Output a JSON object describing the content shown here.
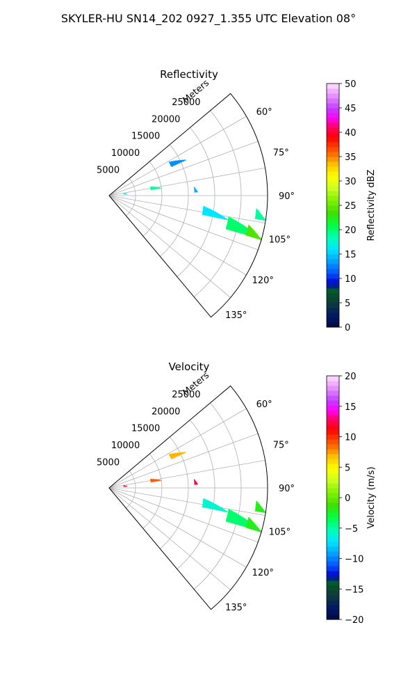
{
  "title": "SKYLER-HU  SN14_202  0927_1.355 UTC Elevation 08°",
  "chart_data": [
    {
      "type": "polar-sector",
      "title": "Reflectivity",
      "range_label": "Meters",
      "range_ticks": [
        5000,
        10000,
        15000,
        20000,
        25000
      ],
      "range_tick_labels": [
        "5000",
        "10000",
        "15000",
        "20000",
        "25000"
      ],
      "range_max_m": 30000,
      "azimuth_range_deg": [
        50,
        140
      ],
      "azimuth_ticks_deg": [
        60,
        75,
        90,
        105,
        120,
        135
      ],
      "azimuth_tick_labels": [
        "60°",
        "75°",
        "90°",
        "105°",
        "120°",
        "135°"
      ],
      "colorbar": {
        "label": "Reflectivity dBZ",
        "range": [
          0,
          50
        ],
        "ticks": [
          0,
          5,
          10,
          15,
          20,
          25,
          30,
          35,
          40,
          45,
          50
        ],
        "tick_labels": [
          "0",
          "5",
          "10",
          "15",
          "20",
          "25",
          "30",
          "35",
          "40",
          "45",
          "50"
        ]
      },
      "echo_regions": [
        {
          "az_deg": 63,
          "range_m": [
            13000,
            16000
          ],
          "value": 13
        },
        {
          "az_deg": 80,
          "range_m": [
            8000,
            10000
          ],
          "value": 19
        },
        {
          "az_deg": 86,
          "range_m": [
            16200,
            16800
          ],
          "value": 14
        },
        {
          "az_deg": 83,
          "range_m": [
            2800,
            3400
          ],
          "value": 18
        },
        {
          "az_deg": 97,
          "range_m": [
            28000,
            32000
          ],
          "value": 19
        },
        {
          "az_deg": 99,
          "range_m": [
            18000,
            23000
          ],
          "value": 16
        },
        {
          "az_deg": 103,
          "range_m": [
            23000,
            31000
          ],
          "value": 20
        },
        {
          "az_deg": 104,
          "range_m": [
            27000,
            31000
          ],
          "value": 24
        }
      ]
    },
    {
      "type": "polar-sector",
      "title": "Velocity",
      "range_label": "Meters",
      "range_ticks": [
        5000,
        10000,
        15000,
        20000,
        25000
      ],
      "range_tick_labels": [
        "5000",
        "10000",
        "15000",
        "20000",
        "25000"
      ],
      "range_max_m": 30000,
      "azimuth_range_deg": [
        50,
        140
      ],
      "azimuth_ticks_deg": [
        60,
        75,
        90,
        105,
        120,
        135
      ],
      "azimuth_tick_labels": [
        "60°",
        "75°",
        "90°",
        "105°",
        "120°",
        "135°"
      ],
      "colorbar": {
        "label": "Velocity (m/s)",
        "range": [
          -20,
          20
        ],
        "ticks": [
          -20,
          -15,
          -10,
          -5,
          0,
          5,
          10,
          15,
          20
        ],
        "tick_labels": [
          "−20",
          "−15",
          "−10",
          "−5",
          "0",
          "5",
          "10",
          "15",
          "20"
        ]
      },
      "echo_regions": [
        {
          "az_deg": 63,
          "range_m": [
            13000,
            16000
          ],
          "value": 7
        },
        {
          "az_deg": 80,
          "range_m": [
            8000,
            10000
          ],
          "value": 9
        },
        {
          "az_deg": 86,
          "range_m": [
            16200,
            16800
          ],
          "value": 12
        },
        {
          "az_deg": 83,
          "range_m": [
            2800,
            3400
          ],
          "value": 12
        },
        {
          "az_deg": 97,
          "range_m": [
            28000,
            32000
          ],
          "value": -2
        },
        {
          "az_deg": 99,
          "range_m": [
            18000,
            23000
          ],
          "value": -6
        },
        {
          "az_deg": 103,
          "range_m": [
            23000,
            31000
          ],
          "value": -4
        },
        {
          "az_deg": 104,
          "range_m": [
            27000,
            31000
          ],
          "value": -2
        }
      ]
    }
  ]
}
